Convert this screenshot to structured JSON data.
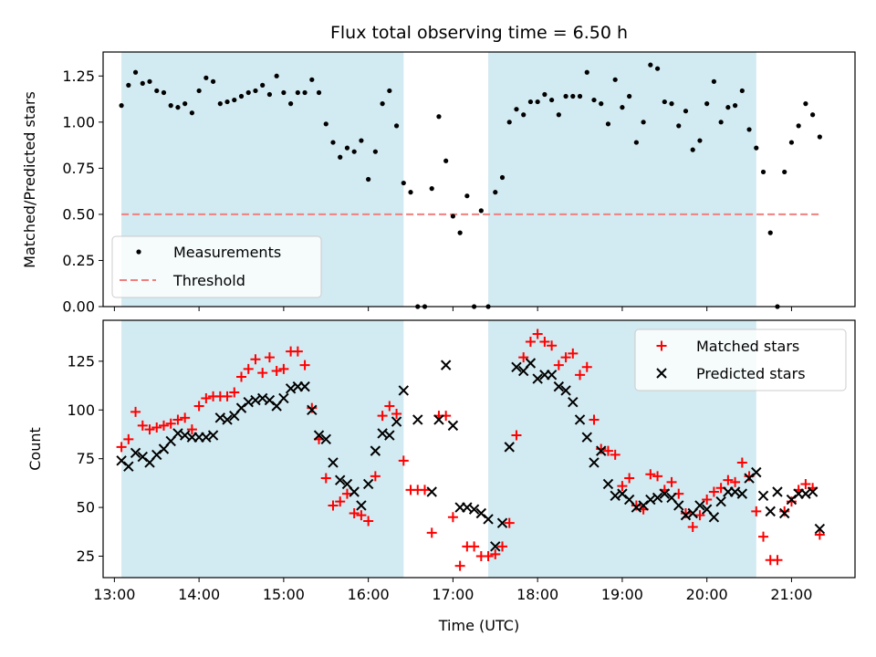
{
  "colors": {
    "shade": "#add8e6",
    "measurement": "#000000",
    "threshold": "#f08080",
    "matched": "#ff0000",
    "predicted": "#000000"
  },
  "chart_data": [
    {
      "type": "scatter",
      "title": "Flux total observing time = 6.50 h",
      "xlabel": "",
      "ylabel": "Matched/Predicted stars",
      "xlim": [
        "12:52",
        "21:45"
      ],
      "ylim": [
        0,
        1.38
      ],
      "x_ticks": [
        "13:00",
        "14:00",
        "15:00",
        "16:00",
        "17:00",
        "18:00",
        "19:00",
        "20:00",
        "21:00"
      ],
      "y_ticks": [
        "0.00",
        "0.25",
        "0.50",
        "0.75",
        "1.00",
        "1.25"
      ],
      "shaded_spans": [
        [
          "13:05",
          "16:25"
        ],
        [
          "17:25",
          "20:35"
        ]
      ],
      "legend_position": "lower-left",
      "threshold": {
        "name": "Threshold",
        "y": 0.5,
        "x_start": "13:05",
        "x_end": "21:20"
      },
      "series": [
        {
          "name": "Measurements",
          "x": [
            "13:05",
            "13:10",
            "13:15",
            "13:20",
            "13:25",
            "13:30",
            "13:35",
            "13:40",
            "13:45",
            "13:50",
            "13:55",
            "14:00",
            "14:05",
            "14:10",
            "14:15",
            "14:20",
            "14:25",
            "14:30",
            "14:35",
            "14:40",
            "14:45",
            "14:50",
            "14:55",
            "15:00",
            "15:05",
            "15:10",
            "15:15",
            "15:20",
            "15:25",
            "15:30",
            "15:35",
            "15:40",
            "15:45",
            "15:50",
            "15:55",
            "16:00",
            "16:05",
            "16:10",
            "16:15",
            "16:20",
            "16:25",
            "16:30",
            "16:35",
            "16:40",
            "16:45",
            "16:50",
            "16:55",
            "17:00",
            "17:05",
            "17:10",
            "17:15",
            "17:20",
            "17:25",
            "17:30",
            "17:35",
            "17:40",
            "17:45",
            "17:50",
            "17:55",
            "18:00",
            "18:05",
            "18:10",
            "18:15",
            "18:20",
            "18:25",
            "18:30",
            "18:35",
            "18:40",
            "18:45",
            "18:50",
            "18:55",
            "19:00",
            "19:05",
            "19:10",
            "19:15",
            "19:20",
            "19:25",
            "19:30",
            "19:35",
            "19:40",
            "19:45",
            "19:50",
            "19:55",
            "20:00",
            "20:05",
            "20:10",
            "20:15",
            "20:20",
            "20:25",
            "20:30",
            "20:35",
            "20:40",
            "20:45",
            "20:50",
            "20:55",
            "21:00",
            "21:05",
            "21:10",
            "21:15",
            "21:20"
          ],
          "y": [
            1.09,
            1.2,
            1.27,
            1.21,
            1.22,
            1.17,
            1.16,
            1.09,
            1.08,
            1.1,
            1.05,
            1.17,
            1.24,
            1.22,
            1.1,
            1.11,
            1.12,
            1.14,
            1.16,
            1.17,
            1.2,
            1.15,
            1.25,
            1.16,
            1.1,
            1.16,
            1.16,
            1.23,
            1.16,
            0.99,
            0.89,
            0.81,
            0.86,
            0.84,
            0.9,
            0.69,
            0.84,
            1.1,
            1.17,
            0.98,
            0.67,
            0.62,
            0.0,
            0.0,
            0.64,
            1.03,
            0.79,
            0.49,
            0.4,
            0.6,
            0.0,
            0.52,
            0.0,
            0.62,
            0.7,
            1.0,
            1.07,
            1.04,
            1.11,
            1.11,
            1.15,
            1.12,
            1.04,
            1.14,
            1.14,
            1.14,
            1.27,
            1.12,
            1.1,
            0.99,
            1.23,
            1.08,
            1.14,
            0.89,
            1.0,
            1.31,
            1.29,
            1.11,
            1.1,
            0.98,
            1.06,
            0.85,
            0.9,
            1.1,
            1.22,
            1.0,
            1.08,
            1.09,
            1.17,
            0.96,
            0.86,
            0.73,
            0.4,
            0.0,
            0.73,
            0.89,
            0.98,
            1.1,
            1.04,
            0.92
          ]
        }
      ]
    },
    {
      "type": "scatter",
      "title": "",
      "xlabel": "Time (UTC)",
      "ylabel": "Count",
      "xlim": [
        "12:52",
        "21:45"
      ],
      "ylim": [
        14,
        146
      ],
      "x_ticks": [
        "13:00",
        "14:00",
        "15:00",
        "16:00",
        "17:00",
        "18:00",
        "19:00",
        "20:00",
        "21:00"
      ],
      "y_ticks": [
        "25",
        "50",
        "75",
        "100",
        "125"
      ],
      "shaded_spans": [
        [
          "13:05",
          "16:25"
        ],
        [
          "17:25",
          "20:35"
        ]
      ],
      "legend_position": "top-right",
      "series": [
        {
          "name": "Matched stars",
          "marker": "plus",
          "x": [
            "13:05",
            "13:10",
            "13:15",
            "13:20",
            "13:25",
            "13:30",
            "13:35",
            "13:40",
            "13:45",
            "13:50",
            "13:55",
            "14:00",
            "14:05",
            "14:10",
            "14:15",
            "14:20",
            "14:25",
            "14:30",
            "14:35",
            "14:40",
            "14:45",
            "14:50",
            "14:55",
            "15:00",
            "15:05",
            "15:10",
            "15:15",
            "15:20",
            "15:25",
            "15:30",
            "15:35",
            "15:40",
            "15:45",
            "15:50",
            "15:55",
            "16:00",
            "16:05",
            "16:10",
            "16:15",
            "16:20",
            "16:25",
            "16:30",
            "16:35",
            "16:40",
            "16:45",
            "16:50",
            "16:55",
            "17:00",
            "17:05",
            "17:10",
            "17:15",
            "17:20",
            "17:25",
            "17:30",
            "17:35",
            "17:40",
            "17:45",
            "17:50",
            "17:55",
            "18:00",
            "18:05",
            "18:10",
            "18:15",
            "18:20",
            "18:25",
            "18:30",
            "18:35",
            "18:40",
            "18:45",
            "18:50",
            "18:55",
            "19:00",
            "19:05",
            "19:10",
            "19:15",
            "19:20",
            "19:25",
            "19:30",
            "19:35",
            "19:40",
            "19:45",
            "19:50",
            "19:55",
            "20:00",
            "20:05",
            "20:10",
            "20:15",
            "20:20",
            "20:25",
            "20:30",
            "20:35",
            "20:40",
            "20:45",
            "20:50",
            "20:55",
            "21:00",
            "21:05",
            "21:10",
            "21:15",
            "21:20"
          ],
          "y": [
            81,
            85,
            99,
            92,
            90,
            91,
            92,
            93,
            95,
            96,
            90,
            102,
            106,
            107,
            107,
            107,
            109,
            117,
            121,
            126,
            119,
            127,
            120,
            121,
            130,
            130,
            123,
            101,
            85,
            65,
            51,
            53,
            57,
            47,
            46,
            43,
            66,
            97,
            102,
            98,
            74,
            59,
            59,
            59,
            37,
            97,
            97,
            45,
            20,
            30,
            30,
            25,
            25,
            26,
            30,
            42,
            87,
            127,
            135,
            139,
            135,
            133,
            123,
            127,
            129,
            118,
            122,
            95,
            80,
            79,
            77,
            61,
            65,
            51,
            49,
            67,
            66,
            59,
            63,
            57,
            47,
            40,
            46,
            54,
            58,
            60,
            64,
            63,
            73,
            66,
            48,
            35,
            23,
            23,
            48,
            53,
            59,
            62,
            60,
            36
          ]
        },
        {
          "name": "Predicted stars",
          "marker": "x",
          "x": [
            "13:05",
            "13:10",
            "13:15",
            "13:20",
            "13:25",
            "13:30",
            "13:35",
            "13:40",
            "13:45",
            "13:50",
            "13:55",
            "14:00",
            "14:05",
            "14:10",
            "14:15",
            "14:20",
            "14:25",
            "14:30",
            "14:35",
            "14:40",
            "14:45",
            "14:50",
            "14:55",
            "15:00",
            "15:05",
            "15:10",
            "15:15",
            "15:20",
            "15:25",
            "15:30",
            "15:35",
            "15:40",
            "15:45",
            "15:50",
            "15:55",
            "16:00",
            "16:05",
            "16:10",
            "16:15",
            "16:20",
            "16:25",
            "16:35",
            "16:45",
            "16:50",
            "16:55",
            "17:00",
            "17:05",
            "17:10",
            "17:15",
            "17:20",
            "17:25",
            "17:30",
            "17:35",
            "17:40",
            "17:45",
            "17:50",
            "17:55",
            "18:00",
            "18:05",
            "18:10",
            "18:15",
            "18:20",
            "18:25",
            "18:30",
            "18:35",
            "18:40",
            "18:45",
            "18:50",
            "18:55",
            "19:00",
            "19:05",
            "19:10",
            "19:15",
            "19:20",
            "19:25",
            "19:30",
            "19:35",
            "19:40",
            "19:45",
            "19:50",
            "19:55",
            "20:00",
            "20:05",
            "20:10",
            "20:15",
            "20:20",
            "20:25",
            "20:30",
            "20:35",
            "20:40",
            "20:45",
            "20:50",
            "20:55",
            "21:00",
            "21:05",
            "21:10",
            "21:15",
            "21:20"
          ],
          "y": [
            74,
            71,
            78,
            76,
            73,
            77,
            80,
            84,
            88,
            87,
            86,
            86,
            86,
            87,
            96,
            95,
            97,
            101,
            104,
            105,
            106,
            105,
            102,
            106,
            111,
            112,
            112,
            100,
            87,
            85,
            73,
            64,
            62,
            58,
            51,
            62,
            79,
            88,
            87,
            94,
            110,
            95,
            58,
            95,
            123,
            92,
            50,
            50,
            49,
            47,
            44,
            30,
            42,
            81,
            122,
            120,
            124,
            116,
            118,
            118,
            112,
            110,
            104,
            95,
            86,
            73,
            79,
            62,
            56,
            57,
            54,
            50,
            51,
            54,
            55,
            57,
            55,
            51,
            46,
            47,
            51,
            49,
            45,
            53,
            58,
            58,
            57,
            65,
            68,
            56,
            48,
            58,
            47,
            54,
            57,
            57,
            58,
            39
          ]
        }
      ]
    }
  ]
}
